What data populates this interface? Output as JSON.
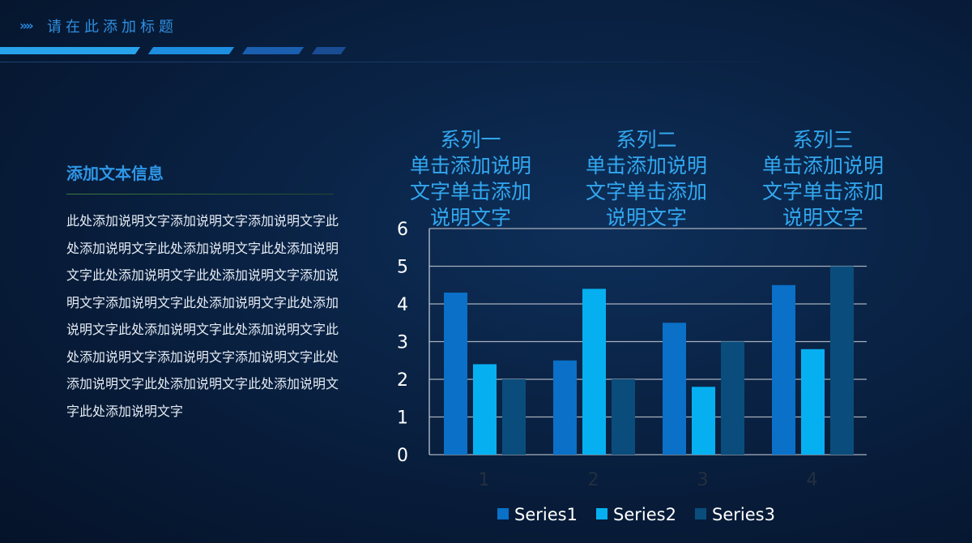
{
  "header": {
    "arrows": "»»",
    "title": "请在此添加标题"
  },
  "text_panel": {
    "heading": "添加文本信息",
    "body": "此处添加说明文字添加说明文字添加说明文字此处添加说明文字此处添加说明文字此处添加说明文字此处添加说明文字此处添加说明文字添加说明文字添加说明文字此处添加说明文字此处添加说明文字此处添加说明文字此处添加说明文字此处添加说明文字添加说明文字添加说明文字此处添加说明文字此处添加说明文字此处添加说明文字此处添加说明文字"
  },
  "colors": {
    "series1": "#0a70c8",
    "series2": "#06b0f0",
    "series3": "#0a4d7c",
    "gridline": "#a8b0bc",
    "axis": "#c0c6cf"
  },
  "chart_data": {
    "type": "bar",
    "categories": [
      "1",
      "2",
      "3",
      "4"
    ],
    "series": [
      {
        "name": "Series1",
        "values": [
          4.3,
          2.5,
          3.5,
          4.5
        ]
      },
      {
        "name": "Series2",
        "values": [
          2.4,
          4.4,
          1.8,
          2.8
        ]
      },
      {
        "name": "Series3",
        "values": [
          2.0,
          2.0,
          3.0,
          5.0
        ]
      }
    ],
    "ylim": [
      0,
      6
    ],
    "yticks": [
      "0",
      "1",
      "2",
      "3",
      "4",
      "5",
      "6"
    ],
    "grid": true,
    "legend": "bottom",
    "annotations": [
      {
        "lines": [
          "系列一",
          "单击添加说明",
          "文字单击添加",
          "说明文字"
        ]
      },
      {
        "lines": [
          "系列二",
          "单击添加说明",
          "文字单击添加",
          "说明文字"
        ]
      },
      {
        "lines": [
          "系列三",
          "单击添加说明",
          "文字单击添加",
          "说明文字"
        ]
      }
    ]
  }
}
